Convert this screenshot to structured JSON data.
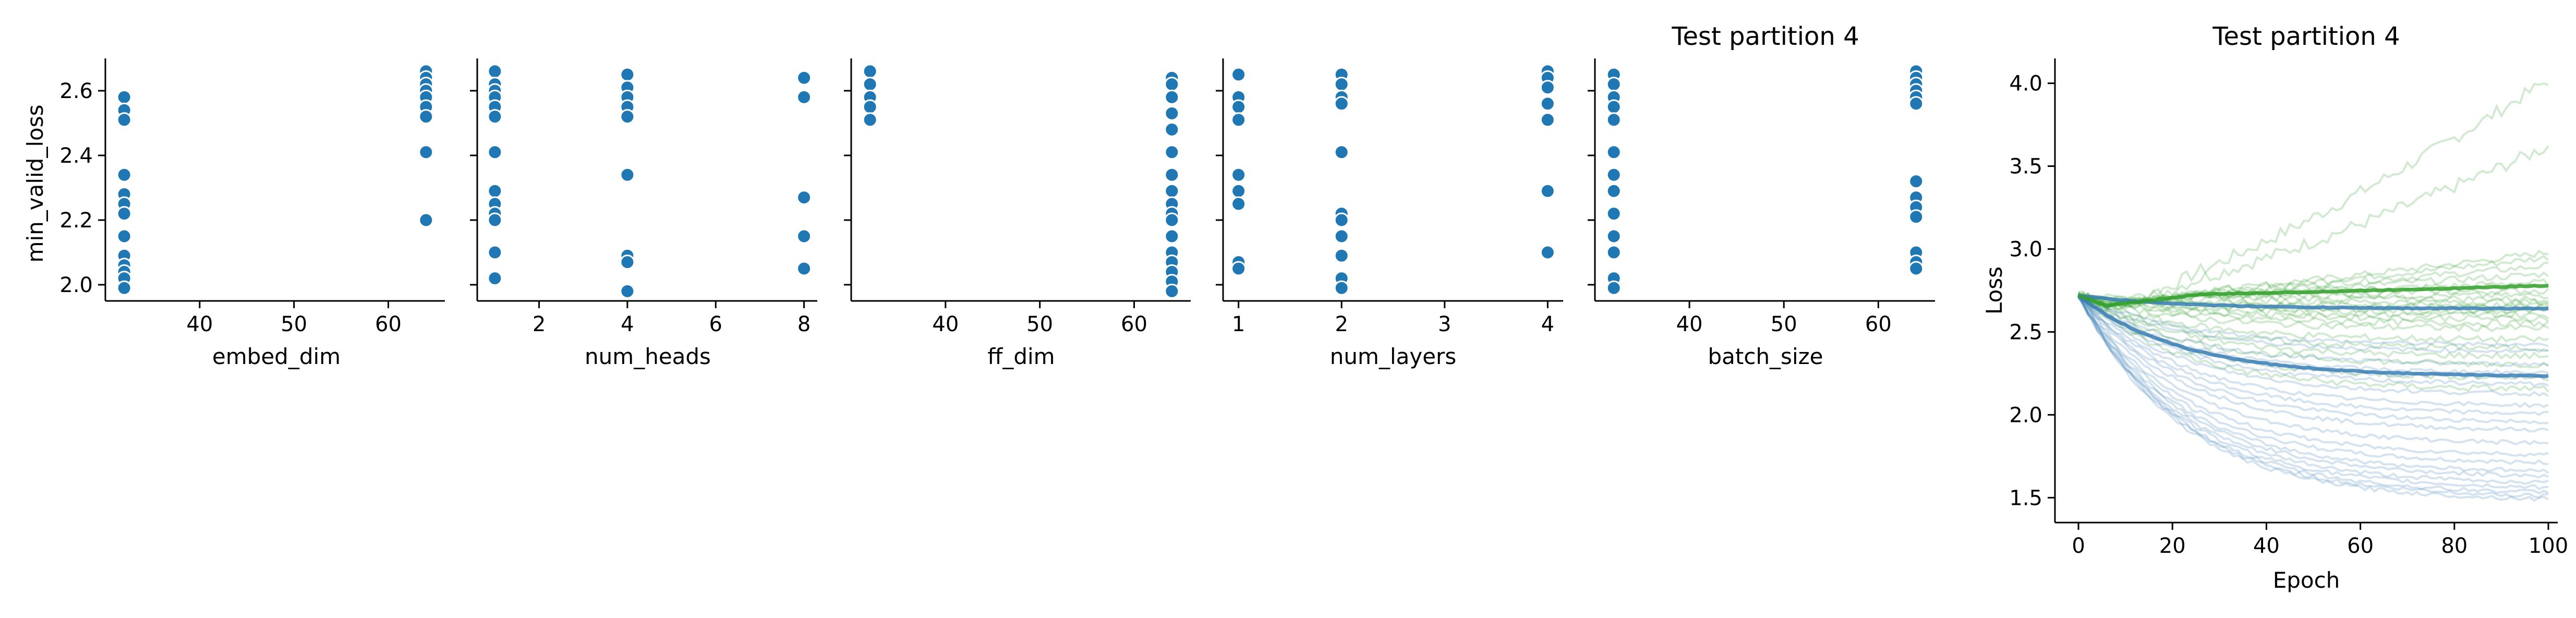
{
  "figure": {
    "background": "#ffffff",
    "scatter_color": "#1f77b4",
    "line_colors": {
      "blue": "#3b7fb6",
      "green": "#33a02c"
    }
  },
  "chart_data": [
    {
      "type": "scatter",
      "title": "",
      "xlabel": "embed_dim",
      "ylabel": "min_valid_loss",
      "xlim": [
        30,
        66
      ],
      "ylim": [
        1.95,
        2.7
      ],
      "xticks": [
        40,
        50,
        60
      ],
      "yticks": [
        2.0,
        2.2,
        2.4,
        2.6
      ],
      "y_tick_labels": [
        "2.0",
        "2.2",
        "2.4",
        "2.6"
      ],
      "points": [
        [
          32,
          2.58
        ],
        [
          32,
          2.54
        ],
        [
          32,
          2.51
        ],
        [
          32,
          2.34
        ],
        [
          32,
          2.28
        ],
        [
          32,
          2.25
        ],
        [
          32,
          2.22
        ],
        [
          32,
          2.15
        ],
        [
          32,
          2.09
        ],
        [
          32,
          2.06
        ],
        [
          32,
          2.04
        ],
        [
          32,
          2.02
        ],
        [
          32,
          1.99
        ],
        [
          64,
          2.66
        ],
        [
          64,
          2.64
        ],
        [
          64,
          2.62
        ],
        [
          64,
          2.6
        ],
        [
          64,
          2.58
        ],
        [
          64,
          2.55
        ],
        [
          64,
          2.52
        ],
        [
          64,
          2.41
        ],
        [
          64,
          2.2
        ]
      ]
    },
    {
      "type": "scatter",
      "title": "",
      "xlabel": "num_heads",
      "ylabel": "",
      "xlim": [
        0.6,
        8.3
      ],
      "ylim": [
        1.95,
        2.7
      ],
      "xticks": [
        2,
        4,
        6,
        8
      ],
      "yticks": [
        2.0,
        2.2,
        2.4,
        2.6
      ],
      "points": [
        [
          1,
          2.66
        ],
        [
          1,
          2.62
        ],
        [
          1,
          2.6
        ],
        [
          1,
          2.58
        ],
        [
          1,
          2.55
        ],
        [
          1,
          2.52
        ],
        [
          1,
          2.41
        ],
        [
          1,
          2.29
        ],
        [
          1,
          2.25
        ],
        [
          1,
          2.22
        ],
        [
          1,
          2.2
        ],
        [
          1,
          2.1
        ],
        [
          1,
          2.02
        ],
        [
          4,
          2.65
        ],
        [
          4,
          2.61
        ],
        [
          4,
          2.58
        ],
        [
          4,
          2.55
        ],
        [
          4,
          2.52
        ],
        [
          4,
          2.34
        ],
        [
          4,
          2.09
        ],
        [
          4,
          2.07
        ],
        [
          4,
          1.98
        ],
        [
          8,
          2.64
        ],
        [
          8,
          2.58
        ],
        [
          8,
          2.27
        ],
        [
          8,
          2.15
        ],
        [
          8,
          2.05
        ]
      ]
    },
    {
      "type": "scatter",
      "title": "",
      "xlabel": "ff_dim",
      "ylabel": "",
      "xlim": [
        30,
        66
      ],
      "ylim": [
        1.95,
        2.7
      ],
      "xticks": [
        40,
        50,
        60
      ],
      "yticks": [
        2.0,
        2.2,
        2.4,
        2.6
      ],
      "points": [
        [
          32,
          2.66
        ],
        [
          32,
          2.62
        ],
        [
          32,
          2.58
        ],
        [
          32,
          2.55
        ],
        [
          32,
          2.51
        ],
        [
          64,
          2.64
        ],
        [
          64,
          2.62
        ],
        [
          64,
          2.58
        ],
        [
          64,
          2.53
        ],
        [
          64,
          2.48
        ],
        [
          64,
          2.41
        ],
        [
          64,
          2.34
        ],
        [
          64,
          2.29
        ],
        [
          64,
          2.25
        ],
        [
          64,
          2.22
        ],
        [
          64,
          2.2
        ],
        [
          64,
          2.15
        ],
        [
          64,
          2.1
        ],
        [
          64,
          2.07
        ],
        [
          64,
          2.04
        ],
        [
          64,
          2.01
        ],
        [
          64,
          1.98
        ]
      ]
    },
    {
      "type": "scatter",
      "title": "",
      "xlabel": "num_layers",
      "ylabel": "",
      "xlim": [
        0.85,
        4.15
      ],
      "ylim": [
        1.95,
        2.7
      ],
      "xticks": [
        1,
        2,
        3,
        4
      ],
      "yticks": [
        2.0,
        2.2,
        2.4,
        2.6
      ],
      "points": [
        [
          1,
          2.65
        ],
        [
          1,
          2.58
        ],
        [
          1,
          2.55
        ],
        [
          1,
          2.51
        ],
        [
          1,
          2.34
        ],
        [
          1,
          2.29
        ],
        [
          1,
          2.25
        ],
        [
          1,
          2.07
        ],
        [
          1,
          2.05
        ],
        [
          2,
          2.65
        ],
        [
          2,
          2.62
        ],
        [
          2,
          2.58
        ],
        [
          2,
          2.56
        ],
        [
          2,
          2.41
        ],
        [
          2,
          2.22
        ],
        [
          2,
          2.2
        ],
        [
          2,
          2.15
        ],
        [
          2,
          2.09
        ],
        [
          2,
          2.02
        ],
        [
          2,
          1.99
        ],
        [
          4,
          2.66
        ],
        [
          4,
          2.64
        ],
        [
          4,
          2.61
        ],
        [
          4,
          2.56
        ],
        [
          4,
          2.51
        ],
        [
          4,
          2.29
        ],
        [
          4,
          2.1
        ]
      ]
    },
    {
      "type": "scatter",
      "title": "Test partition 4",
      "xlabel": "batch_size",
      "ylabel": "",
      "xlim": [
        30,
        66
      ],
      "ylim": [
        1.95,
        2.7
      ],
      "xticks": [
        40,
        50,
        60
      ],
      "yticks": [
        2.0,
        2.2,
        2.4,
        2.6
      ],
      "points": [
        [
          32,
          2.65
        ],
        [
          32,
          2.62
        ],
        [
          32,
          2.58
        ],
        [
          32,
          2.55
        ],
        [
          32,
          2.51
        ],
        [
          32,
          2.41
        ],
        [
          32,
          2.34
        ],
        [
          32,
          2.29
        ],
        [
          32,
          2.22
        ],
        [
          32,
          2.15
        ],
        [
          32,
          2.1
        ],
        [
          32,
          2.02
        ],
        [
          32,
          1.99
        ],
        [
          64,
          2.66
        ],
        [
          64,
          2.64
        ],
        [
          64,
          2.62
        ],
        [
          64,
          2.6
        ],
        [
          64,
          2.58
        ],
        [
          64,
          2.56
        ],
        [
          64,
          2.32
        ],
        [
          64,
          2.27
        ],
        [
          64,
          2.24
        ],
        [
          64,
          2.21
        ],
        [
          64,
          2.1
        ],
        [
          64,
          2.07
        ],
        [
          64,
          2.05
        ]
      ]
    },
    {
      "type": "line",
      "title": "Test partition 4",
      "xlabel": "Epoch",
      "ylabel": "Loss",
      "xlim": [
        -5,
        102
      ],
      "ylim": [
        1.35,
        4.15
      ],
      "xticks": [
        0,
        20,
        40,
        60,
        80,
        100
      ],
      "yticks": [
        1.5,
        2.0,
        2.5,
        3.0,
        3.5,
        4.0
      ],
      "y_tick_labels": [
        "1.5",
        "2.0",
        "2.5",
        "3.0",
        "3.5",
        "4.0"
      ],
      "epochs": 100,
      "start_loss": 2.72,
      "green_final_losses": [
        4.02,
        3.62,
        2.98,
        2.95,
        2.9,
        2.85,
        2.8,
        2.78,
        2.75,
        2.72,
        2.7,
        2.68,
        2.66,
        2.65,
        2.63,
        2.62,
        2.6,
        2.58,
        2.55,
        2.52,
        2.45,
        2.4,
        2.35,
        2.3,
        2.22,
        2.15
      ],
      "blue_final_losses": [
        2.42,
        2.38,
        2.3,
        2.25,
        2.22,
        2.18,
        2.12,
        2.05,
        2.0,
        1.95,
        1.9,
        1.82,
        1.75,
        1.7,
        1.65,
        1.62,
        1.58,
        1.55,
        1.52,
        1.5,
        1.48
      ],
      "mean_green_final": 2.78,
      "mean_blue_final": 2.23,
      "mean_blue2_final": 2.64
    }
  ]
}
